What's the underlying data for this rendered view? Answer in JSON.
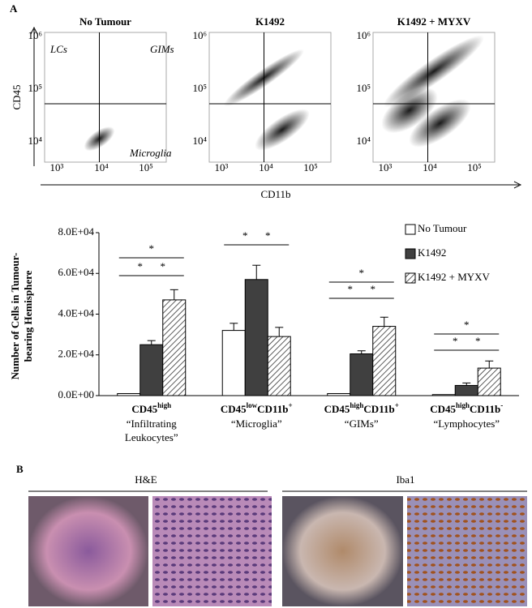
{
  "panel_a": {
    "label": "A",
    "flow": {
      "titles": [
        "No Tumour",
        "K1492",
        "K1492 + MYXV"
      ],
      "x_label": "CD11b",
      "y_label": "CD45",
      "xticks": [
        "10³",
        "10⁴",
        "10⁵"
      ],
      "yticks": [
        "10⁶",
        "10⁵",
        "10⁴"
      ],
      "gates": [
        "LCs",
        "GIMs",
        "Microglia"
      ]
    }
  },
  "chart_data": {
    "type": "bar",
    "y_label": [
      "Number of Cells in Tumour-",
      "bearing Hemisphere"
    ],
    "categories": [
      [
        "CD45",
        "high"
      ],
      [
        "CD45",
        "low",
        "CD11b",
        "+"
      ],
      [
        "CD45",
        "high",
        "CD11b",
        "+"
      ],
      [
        "CD45",
        "high",
        "CD11b",
        "-"
      ]
    ],
    "category_descriptions": [
      [
        "“Infiltrating",
        "Leukocytes”"
      ],
      [
        "“Microglia”"
      ],
      [
        "“GIMs”"
      ],
      [
        "“Lymphocytes”"
      ]
    ],
    "series": [
      {
        "name": "No Tumour",
        "color": "#ffffff",
        "values": [
          1000,
          32000,
          1000,
          500
        ],
        "errors": [
          0,
          3500,
          0,
          0
        ]
      },
      {
        "name": "K1492",
        "color": "#404040",
        "values": [
          25000,
          57000,
          20500,
          5000
        ],
        "errors": [
          2000,
          7000,
          1500,
          1200
        ]
      },
      {
        "name": "K1492 + MYXV",
        "color": "hatch",
        "values": [
          47000,
          29000,
          34000,
          13500
        ],
        "errors": [
          5000,
          4500,
          4500,
          3500
        ]
      }
    ],
    "ylim": [
      0,
      80000
    ],
    "yticks": [
      {
        "value": 0,
        "label": "0.0E+00"
      },
      {
        "value": 20000,
        "label": "2.0E+04"
      },
      {
        "value": 40000,
        "label": "4.0E+04"
      },
      {
        "value": 60000,
        "label": "6.0E+04"
      },
      {
        "value": 80000,
        "label": "8.0E+04"
      }
    ],
    "significance_label": "*",
    "legend": "top-right"
  },
  "panel_b": {
    "label": "B",
    "stains": [
      "H&E",
      "Iba1"
    ]
  }
}
